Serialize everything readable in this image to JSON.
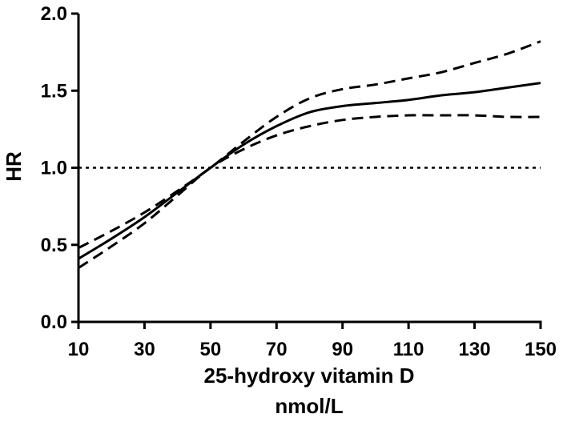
{
  "chart_data": {
    "type": "line",
    "title": "",
    "xlabel_line1": "25-hydroxy vitamin D",
    "xlabel_line2": "nmol/L",
    "ylabel": "HR",
    "xlim": [
      10,
      150
    ],
    "ylim": [
      0.0,
      2.0
    ],
    "x_ticks": [
      10,
      30,
      50,
      70,
      90,
      110,
      130,
      150
    ],
    "y_ticks": [
      0.0,
      0.5,
      1.0,
      1.5,
      2.0
    ],
    "y_tick_labels": [
      "0.0",
      "0.5",
      "1.0",
      "1.5",
      "2.0"
    ],
    "grid": false,
    "legend": "none",
    "reference_line": {
      "y": 1.0,
      "style": "dotted"
    },
    "series": [
      {
        "role": "estimate",
        "style": "solid",
        "color": "#000000",
        "x": [
          10,
          20,
          30,
          40,
          50,
          60,
          70,
          80,
          90,
          100,
          110,
          120,
          130,
          140,
          150
        ],
        "y": [
          0.41,
          0.54,
          0.68,
          0.84,
          1.0,
          1.15,
          1.27,
          1.36,
          1.4,
          1.42,
          1.44,
          1.47,
          1.49,
          1.52,
          1.55
        ]
      },
      {
        "role": "upper-ci",
        "style": "dashed",
        "color": "#000000",
        "x": [
          10,
          20,
          30,
          40,
          50,
          60,
          70,
          80,
          90,
          100,
          110,
          120,
          130,
          140,
          150
        ],
        "y": [
          0.48,
          0.59,
          0.71,
          0.85,
          1.0,
          1.17,
          1.33,
          1.45,
          1.51,
          1.54,
          1.58,
          1.62,
          1.68,
          1.74,
          1.82
        ]
      },
      {
        "role": "lower-ci",
        "style": "dashed",
        "color": "#000000",
        "x": [
          10,
          20,
          30,
          40,
          50,
          60,
          70,
          80,
          90,
          100,
          110,
          120,
          130,
          140,
          150
        ],
        "y": [
          0.35,
          0.49,
          0.64,
          0.82,
          1.0,
          1.12,
          1.21,
          1.27,
          1.31,
          1.33,
          1.34,
          1.34,
          1.34,
          1.33,
          1.33
        ]
      }
    ]
  }
}
